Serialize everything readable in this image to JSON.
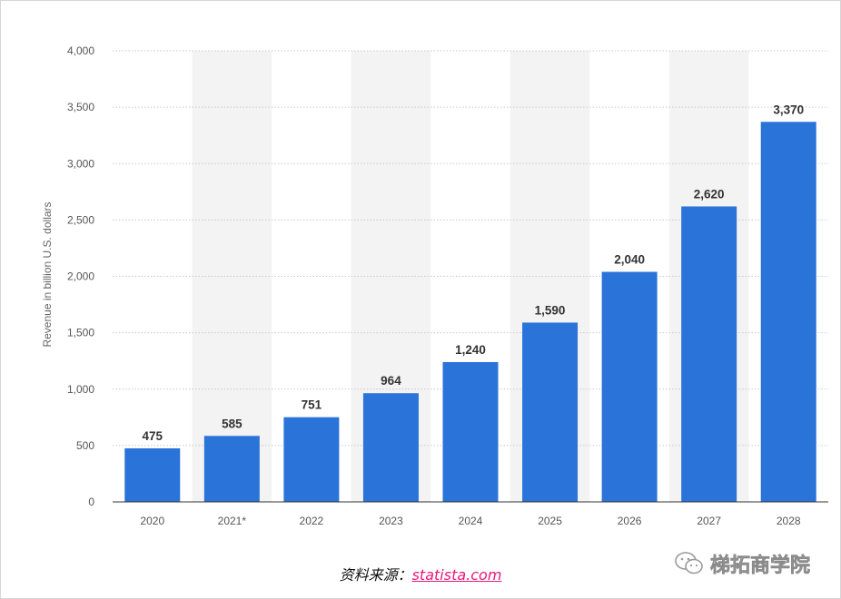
{
  "chart_data": {
    "type": "bar",
    "categories": [
      "2020",
      "2021*",
      "2022",
      "2023",
      "2024",
      "2025",
      "2026",
      "2027",
      "2028"
    ],
    "values": [
      475,
      585,
      751,
      964,
      1240,
      1590,
      2040,
      2620,
      3370
    ],
    "value_labels": [
      "475",
      "585",
      "751",
      "964",
      "1,240",
      "1,590",
      "2,040",
      "2,620",
      "3,370"
    ],
    "ylabel": "Revenue in billion U.S. dollars",
    "yticks": [
      0,
      500,
      1000,
      1500,
      2000,
      2500,
      3000,
      3500,
      4000
    ],
    "ytick_labels": [
      "0",
      "500",
      "1,000",
      "1,500",
      "2,000",
      "2,500",
      "3,000",
      "3,500",
      "4,000"
    ],
    "ylim": [
      0,
      4000
    ],
    "grid": true,
    "bar_color": "#2a73d9",
    "band_color": "#f3f3f3"
  },
  "source": {
    "prefix": "资料来源：",
    "link": "statista.com"
  },
  "watermark": {
    "text": "梯拓商学院",
    "icon": "wechat-icon"
  }
}
